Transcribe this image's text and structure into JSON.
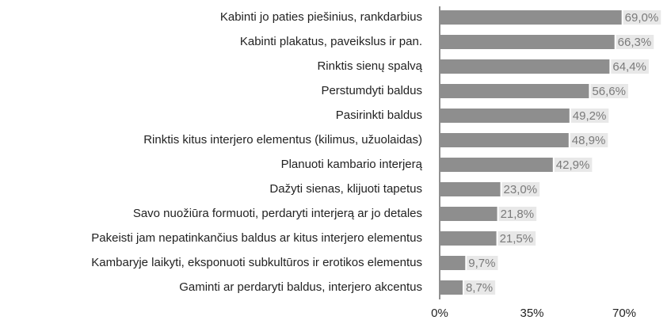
{
  "chart_data": {
    "type": "bar",
    "orientation": "horizontal",
    "categories": [
      "Kabinti jo paties piešinius, rankdarbius",
      "Kabinti plakatus, paveikslus ir pan.",
      "Rinktis sienų spalvą",
      "Perstumdyti baldus",
      "Pasirinkti baldus",
      "Rinktis kitus interjero elementus (kilimus, užuolaidas)",
      "Planuoti kambario interjerą",
      "Dažyti sienas, klijuoti tapetus",
      "Savo nuožiūra formuoti, perdaryti interjerą ar jo detales",
      "Pakeisti jam nepatinkančius baldus ar kitus interjero elementus",
      "Kambaryje laikyti, eksponuoti subkultūros ir erotikos elementus",
      "Gaminti ar perdaryti baldus, interjero akcentus"
    ],
    "values": [
      69.0,
      66.3,
      64.4,
      56.6,
      49.2,
      48.9,
      42.9,
      23.0,
      21.8,
      21.5,
      9.7,
      8.7
    ],
    "value_labels": [
      "69,0%",
      "66,3%",
      "64,4%",
      "56,6%",
      "49,2%",
      "48,9%",
      "42,9%",
      "23,0%",
      "21,8%",
      "21,5%",
      "9,7%",
      "8,7%"
    ],
    "color": "#8e8e8e",
    "xlim": [
      0,
      70
    ],
    "xticks": [
      {
        "value": 0,
        "label": "0%"
      },
      {
        "value": 35,
        "label": "35%"
      },
      {
        "value": 70,
        "label": "70%"
      }
    ]
  }
}
